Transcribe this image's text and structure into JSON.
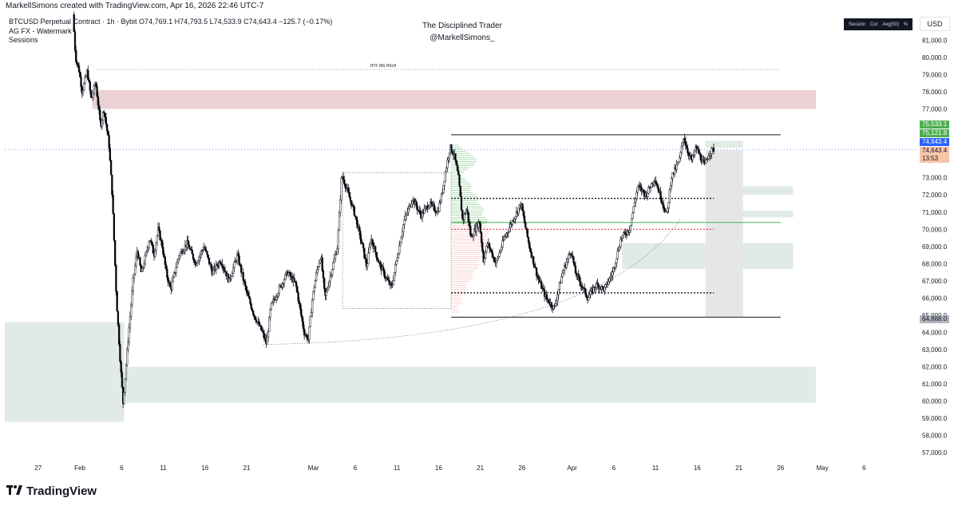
{
  "header": {
    "created_by": "MarkellSimons created with TradingView.com, Apr 16, 2026 22:46 UTC-7"
  },
  "legend": {
    "symbol_line": "BTCUSD Perpetual Contract · 1h · Bybit  O74,769.1  H74,793.5  L74,533.9  C74,643.4  −125.7 (−0.17%)",
    "indicator_1": "AG FX - Watermark",
    "indicator_2": "Sessions"
  },
  "watermark": {
    "title": "The Disciplined Trader",
    "handle": "@MarkellSimons_"
  },
  "session_table": {
    "cells": [
      "Session",
      "Cur",
      "Avg(50)",
      "%"
    ]
  },
  "currency": "USD",
  "footer": {
    "brand": "TradingView"
  },
  "annotations": {
    "htf_label": "HTF MS HIGH"
  },
  "price_tags": {
    "green_top": "75,533.1",
    "green_second": "75,121.8",
    "last_price": "74,643.4",
    "current_price": "74,643.4",
    "countdown": "13:53",
    "low_marker": "64,888.0"
  },
  "colors": {
    "up_candle": "#ffffff",
    "down_candle": "#000000",
    "supply_zone": "#e8c9cc",
    "demand_zone": "#dbe7e1",
    "profile_green": "#4caf50",
    "profile_red": "#f2a09b",
    "last_price_blue": "#2962ff",
    "tag_green": "#4caf50",
    "tag_orange": "#f7c5a8",
    "tag_gray": "#787b86"
  },
  "chart_data": {
    "type": "candlestick",
    "symbol": "BTCUSD Perpetual Contract",
    "interval": "1h",
    "exchange": "Bybit",
    "ylim": [
      56500,
      82600
    ],
    "y_ticks": [
      57000,
      58000,
      59000,
      60000,
      61000,
      62000,
      63000,
      64000,
      65000,
      66000,
      67000,
      68000,
      69000,
      70000,
      71000,
      72000,
      73000,
      74000,
      75000,
      76000,
      77000,
      78000,
      79000,
      80000,
      81000
    ],
    "y_tick_labels": [
      "57,000.0",
      "58,000.0",
      "59,000.0",
      "60,000.0",
      "61,000.0",
      "62,000.0",
      "63,000.0",
      "64,000.0",
      "65,000.0",
      "66,000.0",
      "67,000.0",
      "68,000.0",
      "69,000.0",
      "70,000.0",
      "71,000.0",
      "72,000.0",
      "73,000.0",
      "74,000.0",
      "75,000.0",
      "76,000.0",
      "77,000.0",
      "78,000.0",
      "79,000.0",
      "80,000.0",
      "81,000.0"
    ],
    "x_ticks": [
      {
        "label": "27",
        "day": -5
      },
      {
        "label": "Feb",
        "day": 0
      },
      {
        "label": "6",
        "day": 5
      },
      {
        "label": "11",
        "day": 10
      },
      {
        "label": "16",
        "day": 15
      },
      {
        "label": "21",
        "day": 20
      },
      {
        "label": "Mar",
        "day": 28
      },
      {
        "label": "6",
        "day": 33
      },
      {
        "label": "11",
        "day": 38
      },
      {
        "label": "16",
        "day": 43
      },
      {
        "label": "21",
        "day": 48
      },
      {
        "label": "26",
        "day": 53
      },
      {
        "label": "Apr",
        "day": 59
      },
      {
        "label": "6",
        "day": 64
      },
      {
        "label": "11",
        "day": 69
      },
      {
        "label": "16",
        "day": 74
      },
      {
        "label": "21",
        "day": 79
      },
      {
        "label": "26",
        "day": 84
      },
      {
        "label": "May",
        "day": 89
      },
      {
        "label": "6",
        "day": 94
      }
    ],
    "x_range_days": [
      -9,
      100
    ],
    "price_path": [
      [
        -0.7,
        82500
      ],
      [
        -0.4,
        80000
      ],
      [
        0.0,
        79300
      ],
      [
        0.4,
        78000
      ],
      [
        1.0,
        79200
      ],
      [
        1.5,
        77500
      ],
      [
        2.0,
        78600
      ],
      [
        2.6,
        76000
      ],
      [
        3.0,
        77000
      ],
      [
        3.6,
        75000
      ],
      [
        4.0,
        72000
      ],
      [
        4.5,
        66000
      ],
      [
        5.0,
        62000
      ],
      [
        5.3,
        59900
      ],
      [
        5.8,
        63000
      ],
      [
        6.5,
        67000
      ],
      [
        7.0,
        68800
      ],
      [
        7.5,
        67400
      ],
      [
        8.5,
        69500
      ],
      [
        9.0,
        68500
      ],
      [
        9.5,
        70000
      ],
      [
        10.0,
        69000
      ],
      [
        10.5,
        67400
      ],
      [
        11.0,
        66500
      ],
      [
        11.5,
        67500
      ],
      [
        12.0,
        68500
      ],
      [
        13.0,
        69200
      ],
      [
        14.0,
        68000
      ],
      [
        15.0,
        69000
      ],
      [
        16.0,
        67500
      ],
      [
        17.0,
        68200
      ],
      [
        18.0,
        67000
      ],
      [
        19.0,
        68500
      ],
      [
        20.0,
        66500
      ],
      [
        21.0,
        65000
      ],
      [
        22.0,
        64000
      ],
      [
        22.5,
        63300
      ],
      [
        23.0,
        65500
      ],
      [
        24.0,
        66500
      ],
      [
        25.0,
        67500
      ],
      [
        26.0,
        66800
      ],
      [
        27.0,
        64000
      ],
      [
        27.5,
        63600
      ],
      [
        28.0,
        66000
      ],
      [
        28.5,
        67500
      ],
      [
        29.0,
        68500
      ],
      [
        29.5,
        66000
      ],
      [
        30.0,
        67000
      ],
      [
        31.0,
        69000
      ],
      [
        31.5,
        73200
      ],
      [
        32.0,
        72500
      ],
      [
        33.0,
        71000
      ],
      [
        34.0,
        69000
      ],
      [
        34.5,
        67800
      ],
      [
        35.0,
        69500
      ],
      [
        36.0,
        68000
      ],
      [
        37.0,
        67000
      ],
      [
        37.5,
        66600
      ],
      [
        38.0,
        68000
      ],
      [
        39.0,
        70500
      ],
      [
        40.0,
        71800
      ],
      [
        41.0,
        70800
      ],
      [
        42.0,
        71500
      ],
      [
        43.0,
        71000
      ],
      [
        43.5,
        72000
      ],
      [
        44.0,
        73500
      ],
      [
        44.5,
        74800
      ],
      [
        45.0,
        74300
      ],
      [
        45.5,
        73000
      ],
      [
        46.0,
        70500
      ],
      [
        46.5,
        71200
      ],
      [
        47.0,
        69500
      ],
      [
        48.0,
        70500
      ],
      [
        48.5,
        68200
      ],
      [
        49.0,
        69200
      ],
      [
        50.0,
        68000
      ],
      [
        51.0,
        69500
      ],
      [
        52.0,
        70500
      ],
      [
        53.0,
        71500
      ],
      [
        53.5,
        70200
      ],
      [
        54.0,
        69000
      ],
      [
        55.0,
        67200
      ],
      [
        56.0,
        66000
      ],
      [
        57.0,
        65400
      ],
      [
        57.5,
        66500
      ],
      [
        58.0,
        67500
      ],
      [
        59.0,
        68800
      ],
      [
        59.5,
        67500
      ],
      [
        60.0,
        67000
      ],
      [
        61.0,
        66000
      ],
      [
        62.0,
        66800
      ],
      [
        63.0,
        66500
      ],
      [
        64.0,
        67500
      ],
      [
        65.0,
        69500
      ],
      [
        66.0,
        70000
      ],
      [
        67.0,
        72500
      ],
      [
        68.0,
        72000
      ],
      [
        69.0,
        73000
      ],
      [
        70.0,
        71500
      ],
      [
        70.5,
        70800
      ],
      [
        71.0,
        73000
      ],
      [
        72.0,
        74000
      ],
      [
        72.5,
        75400
      ],
      [
        73.0,
        74500
      ],
      [
        73.5,
        74000
      ],
      [
        74.0,
        74800
      ],
      [
        74.5,
        74200
      ],
      [
        75.0,
        73700
      ],
      [
        75.5,
        74400
      ],
      [
        76.0,
        74643
      ]
    ],
    "levels": {
      "htf_ms_high": 79300,
      "range_high": 75500,
      "range_low": 64888,
      "dotted_upper": 71800,
      "dotted_mid_red": 70000,
      "dotted_lower": 66300,
      "green_line": 70400
    },
    "zones": [
      {
        "kind": "supply",
        "from_day": 1.5,
        "to_day": 96,
        "low": 77000,
        "high": 78100
      },
      {
        "kind": "demand",
        "from_day": 5.5,
        "to_day": 96,
        "low": 59900,
        "high": 62000
      },
      {
        "kind": "demand",
        "from_day": -9,
        "to_day": 5.3,
        "low": 58800,
        "high": 64600
      },
      {
        "kind": "demand",
        "from_day": 75,
        "to_day": 85.5,
        "low": 72000,
        "high": 72500
      },
      {
        "kind": "demand",
        "from_day": 75,
        "to_day": 85.5,
        "low": 70700,
        "high": 71100
      },
      {
        "kind": "demand",
        "from_day": 65,
        "to_day": 85.5,
        "low": 67700,
        "high": 69200
      },
      {
        "kind": "demand",
        "from_day": 75,
        "to_day": 79.5,
        "low": 74750,
        "high": 75150
      }
    ],
    "title": "",
    "xlabel": "",
    "ylabel": "",
    "grid": false,
    "legend_position": "top-left"
  }
}
